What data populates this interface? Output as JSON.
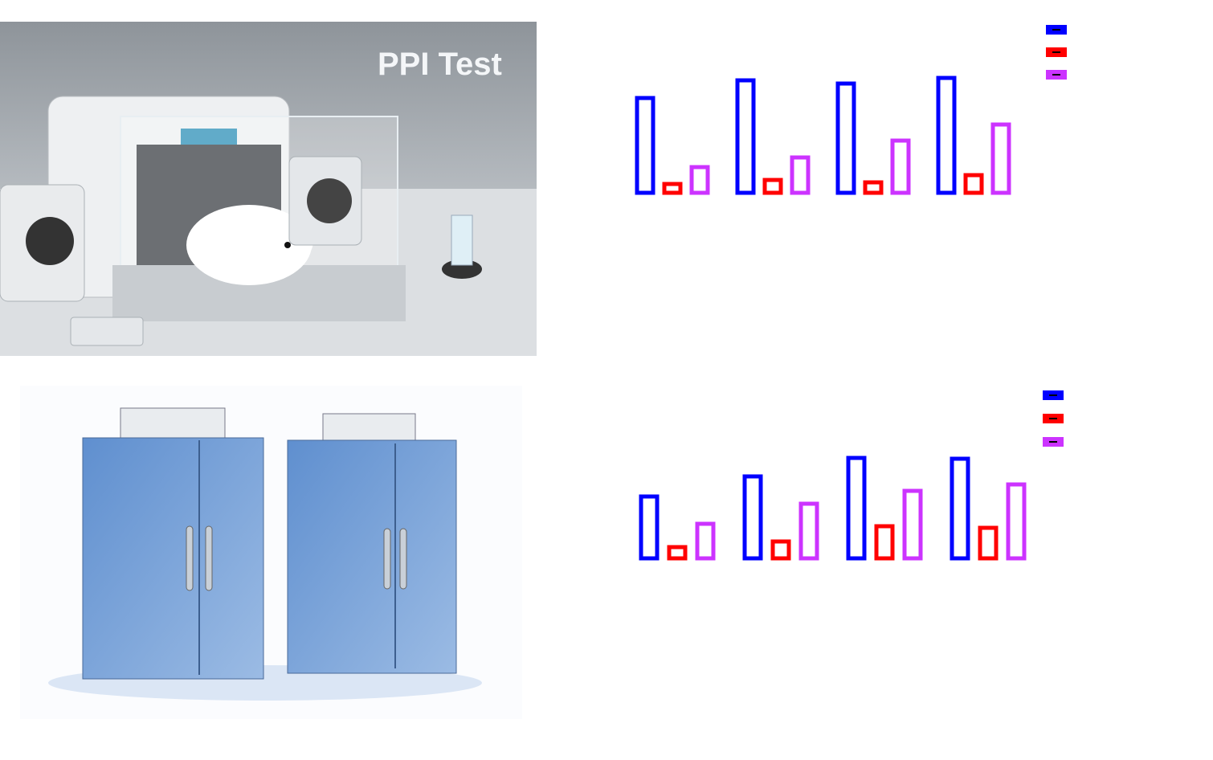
{
  "panel_label": "PPI Test",
  "chart_data": [
    {
      "type": "bar",
      "categories": [
        null,
        null,
        null,
        null
      ],
      "ylim": [
        0,
        150
      ],
      "series": [
        {
          "color": "#0000ff",
          "values": [
            118,
            140,
            136,
            143
          ]
        },
        {
          "color": "#ff0000",
          "values": [
            11,
            16,
            13,
            22
          ]
        },
        {
          "color": "#cc33ff",
          "values": [
            32,
            44,
            65,
            85
          ]
        }
      ]
    },
    {
      "type": "bar",
      "categories": [
        null,
        null,
        null,
        null
      ],
      "ylim": [
        0,
        150
      ],
      "series": [
        {
          "color": "#0000ff",
          "values": [
            77,
            102,
            125,
            124
          ]
        },
        {
          "color": "#ff0000",
          "values": [
            14,
            21,
            40,
            38
          ]
        },
        {
          "color": "#cc33ff",
          "values": [
            43,
            68,
            84,
            92
          ]
        }
      ]
    }
  ]
}
